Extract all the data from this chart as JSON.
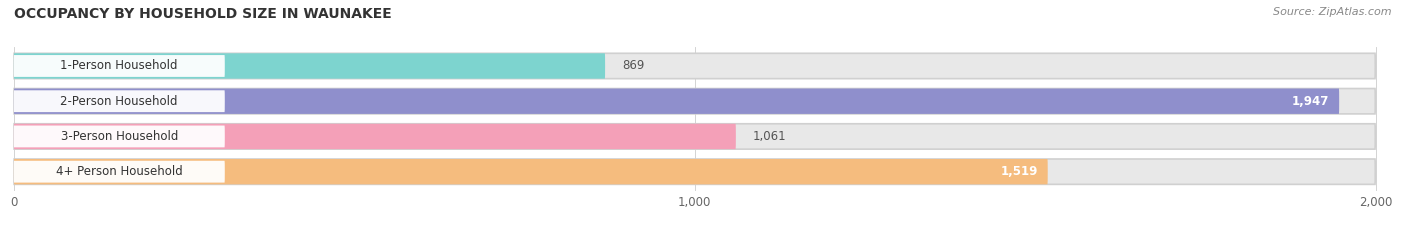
{
  "title": "OCCUPANCY BY HOUSEHOLD SIZE IN WAUNAKEE",
  "source": "Source: ZipAtlas.com",
  "categories": [
    "1-Person Household",
    "2-Person Household",
    "3-Person Household",
    "4+ Person Household"
  ],
  "values": [
    869,
    1947,
    1061,
    1519
  ],
  "bar_colors": [
    "#7dd4cf",
    "#8f8fcc",
    "#f4a0b8",
    "#f5bc7e"
  ],
  "background_color": "#ffffff",
  "bar_bg_color": "#e8e8e8",
  "xlim": [
    -20,
    2000
  ],
  "xticks": [
    0,
    1000,
    2000
  ],
  "value_label_inside": [
    false,
    true,
    false,
    true
  ],
  "figsize": [
    14.06,
    2.33
  ],
  "dpi": 100
}
